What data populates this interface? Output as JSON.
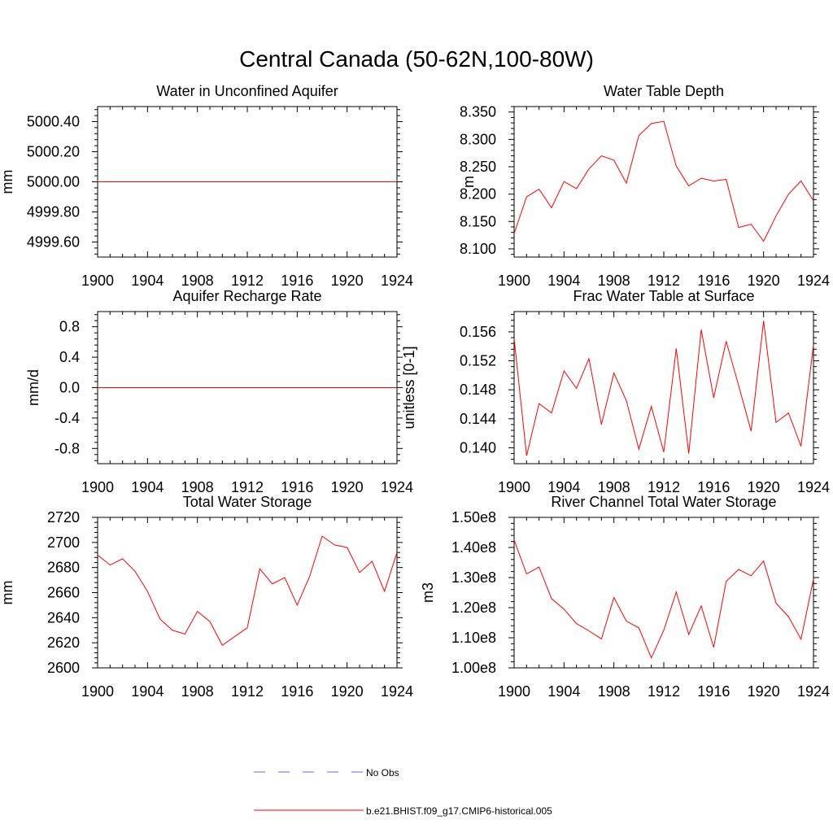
{
  "figure": {
    "title": "Central Canada (50-62N,100-80W)"
  },
  "chart_data": [
    {
      "type": "line",
      "title": "Water in Unconfined Aquifer",
      "xlabel": "",
      "ylabel": "mm",
      "xlim": [
        1900,
        1924
      ],
      "ylim": [
        4999.5,
        5000.5
      ],
      "xticks": [
        1900,
        1904,
        1908,
        1912,
        1916,
        1920,
        1924
      ],
      "yticks": [
        4999.6,
        4999.8,
        5000.0,
        5000.2,
        5000.4
      ],
      "ytick_labels": [
        "4999.60",
        "4999.80",
        "5000.00",
        "5000.20",
        "5000.40"
      ],
      "x": [
        1900,
        1901,
        1902,
        1903,
        1904,
        1905,
        1906,
        1907,
        1908,
        1909,
        1910,
        1911,
        1912,
        1913,
        1914,
        1915,
        1916,
        1917,
        1918,
        1919,
        1920,
        1921,
        1922,
        1923,
        1924
      ],
      "series": [
        {
          "color": "#ff0000",
          "values": [
            5000,
            5000,
            5000,
            5000,
            5000,
            5000,
            5000,
            5000,
            5000,
            5000,
            5000,
            5000,
            5000,
            5000,
            5000,
            5000,
            5000,
            5000,
            5000,
            5000,
            5000,
            5000,
            5000,
            5000,
            5000
          ]
        }
      ]
    },
    {
      "type": "line",
      "title": "Water Table Depth",
      "xlabel": "",
      "ylabel": "m",
      "xlim": [
        1900,
        1924
      ],
      "ylim": [
        8.085,
        8.36
      ],
      "xticks": [
        1900,
        1904,
        1908,
        1912,
        1916,
        1920,
        1924
      ],
      "yticks": [
        8.1,
        8.15,
        8.2,
        8.25,
        8.3,
        8.35
      ],
      "ytick_labels": [
        "8.100",
        "8.150",
        "8.200",
        "8.250",
        "8.300",
        "8.350"
      ],
      "x": [
        1900,
        1901,
        1902,
        1903,
        1904,
        1905,
        1906,
        1907,
        1908,
        1909,
        1910,
        1911,
        1912,
        1913,
        1914,
        1915,
        1916,
        1917,
        1918,
        1919,
        1920,
        1921,
        1922,
        1923,
        1924
      ],
      "series": [
        {
          "color": "#ff0000",
          "values": [
            8.128,
            8.195,
            8.209,
            8.175,
            8.223,
            8.21,
            8.246,
            8.27,
            8.262,
            8.22,
            8.307,
            8.329,
            8.333,
            8.251,
            8.215,
            8.229,
            8.224,
            8.227,
            8.139,
            8.145,
            8.114,
            8.16,
            8.2,
            8.224,
            8.188
          ]
        }
      ]
    },
    {
      "type": "line",
      "title": "Aquifer Recharge Rate",
      "xlabel": "",
      "ylabel": "mm/d",
      "xlim": [
        1900,
        1924
      ],
      "ylim": [
        -1.0,
        1.0
      ],
      "xticks": [
        1900,
        1904,
        1908,
        1912,
        1916,
        1920,
        1924
      ],
      "yticks": [
        -0.8,
        -0.4,
        0.0,
        0.4,
        0.8
      ],
      "ytick_labels": [
        "-0.8",
        "-0.4",
        "0.0",
        "0.4",
        "0.8"
      ],
      "x": [
        1900,
        1901,
        1902,
        1903,
        1904,
        1905,
        1906,
        1907,
        1908,
        1909,
        1910,
        1911,
        1912,
        1913,
        1914,
        1915,
        1916,
        1917,
        1918,
        1919,
        1920,
        1921,
        1922,
        1923,
        1924
      ],
      "series": [
        {
          "color": "#ff0000",
          "values": [
            0,
            0,
            0,
            0,
            0,
            0,
            0,
            0,
            0,
            0,
            0,
            0,
            0,
            0,
            0,
            0,
            0,
            0,
            0,
            0,
            0,
            0,
            0,
            0,
            0
          ]
        }
      ]
    },
    {
      "type": "line",
      "title": "Frac Water Table at Surface",
      "xlabel": "",
      "ylabel": "unitless [0-1]",
      "xlim": [
        1900,
        1924
      ],
      "ylim": [
        0.1378,
        0.1588
      ],
      "xticks": [
        1900,
        1904,
        1908,
        1912,
        1916,
        1920,
        1924
      ],
      "yticks": [
        0.14,
        0.144,
        0.148,
        0.152,
        0.156
      ],
      "ytick_labels": [
        "0.140",
        "0.144",
        "0.148",
        "0.152",
        "0.156"
      ],
      "x": [
        1900,
        1901,
        1902,
        1903,
        1904,
        1905,
        1906,
        1907,
        1908,
        1909,
        1910,
        1911,
        1912,
        1913,
        1914,
        1915,
        1916,
        1917,
        1918,
        1919,
        1920,
        1921,
        1922,
        1923,
        1924
      ],
      "series": [
        {
          "color": "#ff0000",
          "values": [
            0.1551,
            0.1389,
            0.1461,
            0.1448,
            0.1506,
            0.1482,
            0.1523,
            0.1432,
            0.1503,
            0.1465,
            0.1398,
            0.1457,
            0.1394,
            0.1537,
            0.1392,
            0.1563,
            0.1469,
            0.1547,
            0.1486,
            0.1423,
            0.1575,
            0.1435,
            0.1448,
            0.1402,
            0.1542
          ]
        }
      ]
    },
    {
      "type": "line",
      "title": "Total Water Storage",
      "xlabel": "",
      "ylabel": "mm",
      "xlim": [
        1900,
        1924
      ],
      "ylim": [
        2600,
        2720
      ],
      "xticks": [
        1900,
        1904,
        1908,
        1912,
        1916,
        1920,
        1924
      ],
      "yticks": [
        2600,
        2620,
        2640,
        2660,
        2680,
        2700,
        2720
      ],
      "ytick_labels": [
        "2600",
        "2620",
        "2640",
        "2660",
        "2680",
        "2700",
        "2720"
      ],
      "x": [
        1900,
        1901,
        1902,
        1903,
        1904,
        1905,
        1906,
        1907,
        1908,
        1909,
        1910,
        1911,
        1912,
        1913,
        1914,
        1915,
        1916,
        1917,
        1918,
        1919,
        1920,
        1921,
        1922,
        1923,
        1924
      ],
      "series": [
        {
          "color": "#ff0000",
          "values": [
            2690,
            2682,
            2687,
            2677,
            2661,
            2639,
            2630,
            2627,
            2645,
            2637,
            2618,
            2625,
            2632,
            2679,
            2667,
            2672,
            2650,
            2673,
            2705,
            2698,
            2696,
            2676,
            2685,
            2661,
            2692
          ]
        }
      ]
    },
    {
      "type": "line",
      "title": "River Channel Total Water Storage",
      "xlabel": "",
      "ylabel": "m3",
      "xlim": [
        1900,
        1924
      ],
      "ylim": [
        100000000,
        150000000
      ],
      "xticks": [
        1900,
        1904,
        1908,
        1912,
        1916,
        1920,
        1924
      ],
      "yticks": [
        100000000,
        110000000,
        120000000,
        130000000,
        140000000,
        150000000
      ],
      "ytick_labels": [
        "1.00e8",
        "1.10e8",
        "1.20e8",
        "1.30e8",
        "1.40e8",
        "1.50e8"
      ],
      "x": [
        1900,
        1901,
        1902,
        1903,
        1904,
        1905,
        1906,
        1907,
        1908,
        1909,
        1910,
        1911,
        1912,
        1913,
        1914,
        1915,
        1916,
        1917,
        1918,
        1919,
        1920,
        1921,
        1922,
        1923,
        1924
      ],
      "series": [
        {
          "color": "#ff0000",
          "values": [
            142500000,
            131200000,
            133500000,
            123000000,
            119500000,
            114700000,
            112300000,
            109600000,
            123400000,
            115500000,
            113300000,
            103300000,
            112500000,
            125200000,
            111100000,
            120600000,
            106800000,
            128700000,
            132700000,
            130600000,
            135500000,
            121500000,
            117000000,
            109500000,
            129500000
          ]
        }
      ]
    }
  ],
  "legend": {
    "items": [
      {
        "label": "No Obs",
        "color": "#6a6ad0",
        "style": "dashed"
      },
      {
        "label": "b.e21.BHIST.f09_g17.CMIP6-historical.005",
        "color": "#ff0000",
        "style": "solid"
      }
    ]
  }
}
